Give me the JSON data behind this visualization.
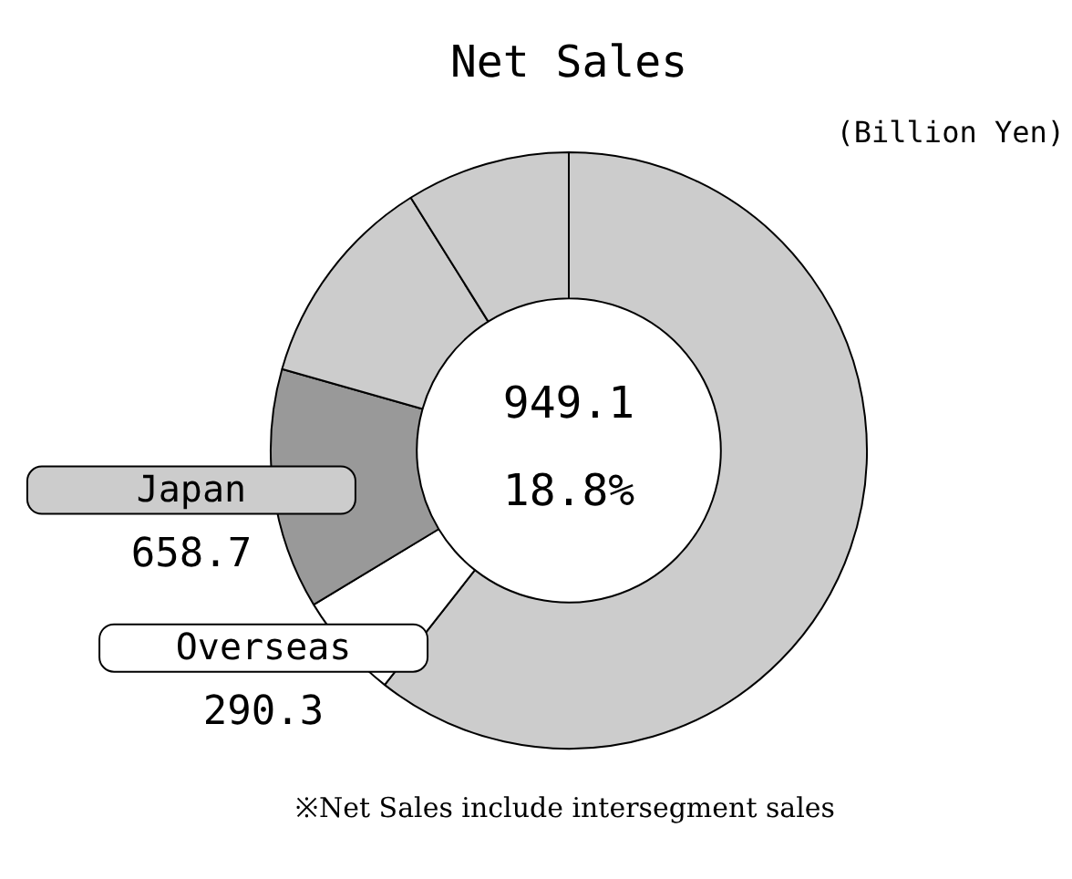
{
  "chart_data": {
    "type": "donut",
    "title": "Net Sales",
    "subtitle": "(Billion Yen)",
    "categories": [
      null,
      "Overseas",
      "Japan",
      null,
      null
    ],
    "values": [
      3059,
      290.3,
      658.7,
      591,
      449
    ],
    "colors": [
      "#cccccc",
      "#ffffff",
      "#999999",
      "#cccccc",
      "#cccccc"
    ],
    "value_labels": [
      null,
      "290.3",
      "658.7",
      null,
      null
    ],
    "annotations": [
      "949.1",
      "18.8%",
      "※Net Sales include intersegment sales"
    ],
    "legend": false
  }
}
